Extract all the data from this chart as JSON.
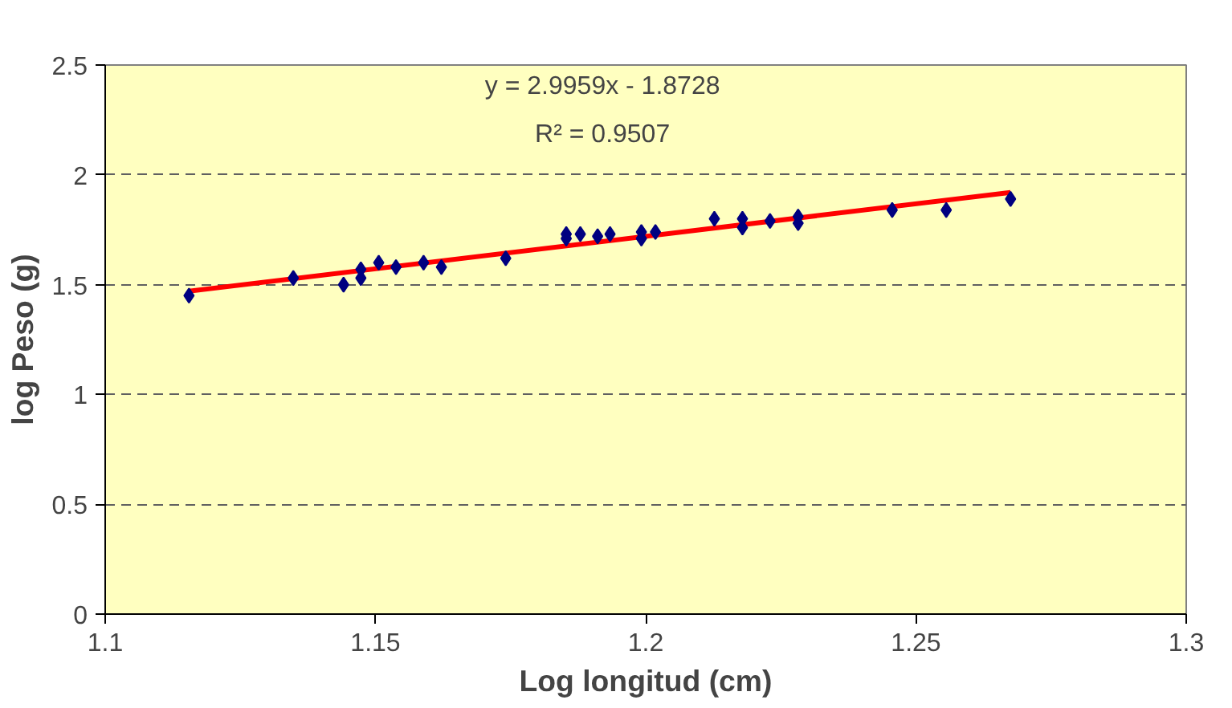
{
  "chart_data": {
    "type": "scatter",
    "xlabel": "Log longitud (cm)",
    "ylabel": "log Peso (g)",
    "xlim": [
      1.1,
      1.3
    ],
    "xticks": [
      1.1,
      1.15,
      1.2,
      1.25,
      1.3
    ],
    "ylim": [
      0,
      2.5
    ],
    "yticks": [
      0,
      0.5,
      1,
      1.5,
      2,
      2.5
    ],
    "grid": "y",
    "marker": "diamond",
    "annotations": [
      "y = 2.9959x - 1.8728",
      "R² = 0.9507"
    ],
    "series": [
      {
        "color": "#000080",
        "x": [
          1.1155,
          1.1348,
          1.1441,
          1.1473,
          1.1473,
          1.1506,
          1.1538,
          1.1589,
          1.1622,
          1.1741,
          1.1853,
          1.1853,
          1.1879,
          1.1911,
          1.1934,
          1.1992,
          1.1992,
          1.2018,
          1.2127,
          1.2179,
          1.2179,
          1.223,
          1.2282,
          1.2282,
          1.2456,
          1.2556,
          1.2675
        ],
        "values": [
          1.45,
          1.53,
          1.5,
          1.53,
          1.57,
          1.6,
          1.58,
          1.6,
          1.58,
          1.62,
          1.71,
          1.73,
          1.73,
          1.72,
          1.73,
          1.71,
          1.74,
          1.74,
          1.8,
          1.8,
          1.76,
          1.79,
          1.81,
          1.78,
          1.84,
          1.84,
          1.89
        ]
      },
      {
        "type": "line",
        "color": "#ff0000",
        "marker": "none",
        "x": [
          1.1155,
          1.2675
        ],
        "values": [
          1.47,
          1.92
        ]
      }
    ]
  }
}
